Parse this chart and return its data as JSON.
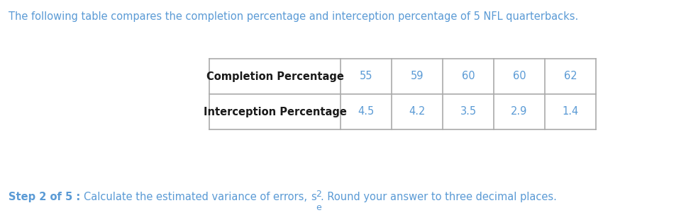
{
  "intro_text": "The following table compares the completion percentage and interception percentage of 5 NFL quarterbacks.",
  "intro_color": "#5a9ad5",
  "row1_label": "Completion Percentage",
  "row2_label": "Interception Percentage",
  "row1_values": [
    "55",
    "59",
    "60",
    "60",
    "62"
  ],
  "row2_values": [
    "4.5",
    "4.2",
    "3.5",
    "2.9",
    "1.4"
  ],
  "step_bold": "Step 2 of 5 : ",
  "step_normal": "Calculate the estimated variance of errors, ",
  "step_end": ". Round your answer to three decimal places.",
  "text_color": "#5a9ad5",
  "label_color": "#1a1a1a",
  "bg_color": "#ffffff",
  "border_color": "#aaaaaa",
  "fontsize": 10.5,
  "math_fontsize": 9.0
}
